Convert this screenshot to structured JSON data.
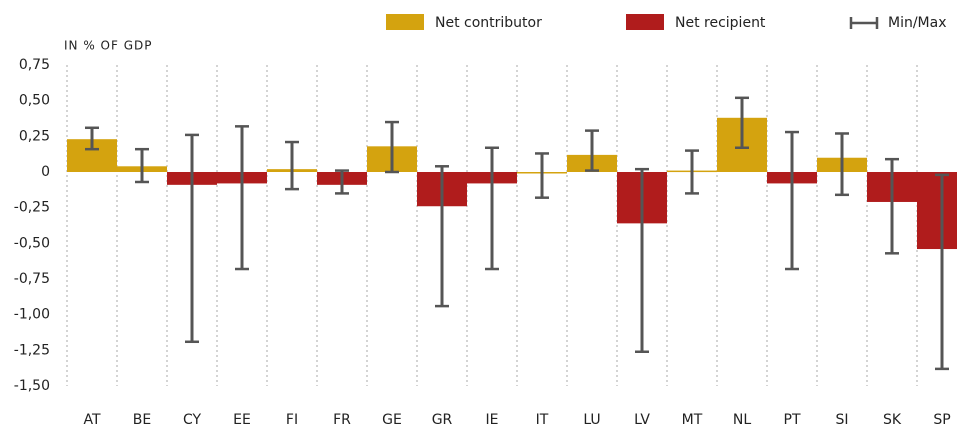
{
  "chart_data": {
    "type": "bar",
    "y_axis_label": "IN % OF GDP",
    "categories": [
      "AT",
      "BE",
      "CY",
      "EE",
      "FI",
      "FR",
      "GE",
      "GR",
      "IE",
      "IT",
      "LU",
      "LV",
      "MT",
      "NL",
      "PT",
      "SI",
      "SK",
      "SP"
    ],
    "series": [
      {
        "name": "Net contributor",
        "color": "#d4a30f",
        "values": [
          0.23,
          0.04,
          null,
          null,
          0.02,
          null,
          0.18,
          null,
          null,
          0,
          0.12,
          null,
          0.01,
          0.38,
          null,
          0.1,
          null,
          null
        ]
      },
      {
        "name": "Net recipient",
        "color": "#b01c1c",
        "values": [
          null,
          null,
          -0.09,
          -0.08,
          null,
          -0.09,
          null,
          -0.24,
          -0.08,
          null,
          null,
          -0.36,
          null,
          null,
          -0.08,
          null,
          -0.21,
          -0.54
        ]
      }
    ],
    "error_bars": {
      "name": "Min/Max",
      "color": "#555555",
      "min": [
        0.16,
        -0.07,
        -1.19,
        -0.68,
        -0.12,
        -0.15,
        0,
        -0.94,
        -0.68,
        -0.18,
        0.01,
        -1.26,
        -0.15,
        0.17,
        -0.68,
        -0.16,
        -0.57,
        -1.38
      ],
      "max": [
        0.31,
        0.16,
        0.26,
        0.32,
        0.21,
        0.01,
        0.35,
        0.04,
        0.17,
        0.13,
        0.29,
        0.02,
        0.15,
        0.52,
        0.28,
        0.27,
        0.09,
        -0.02
      ]
    },
    "ylim": [
      -1.5,
      0.75
    ],
    "yticks": [
      {
        "value": -1.5,
        "label": "-1,50"
      },
      {
        "value": -1.25,
        "label": "-1,25"
      },
      {
        "value": -1,
        "label": "-1,00"
      },
      {
        "value": -0.75,
        "label": "-0,75"
      },
      {
        "value": -0.5,
        "label": "-0,50"
      },
      {
        "value": -0.25,
        "label": "-0,25"
      },
      0,
      {
        "value": 0.25,
        "label": "0,25"
      },
      {
        "value": 0.5,
        "label": "0,50"
      },
      {
        "value": 0.75,
        "label": "0,75"
      }
    ],
    "vertical_separators": true
  }
}
